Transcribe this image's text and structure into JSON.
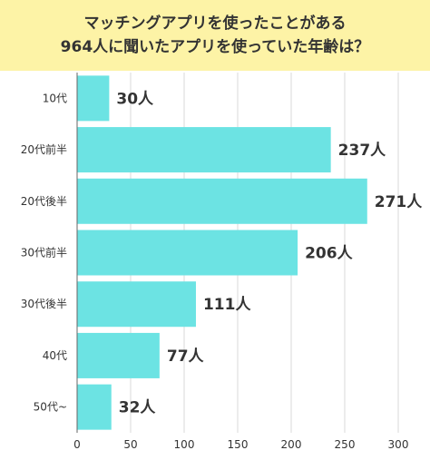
{
  "chart_data": {
    "type": "bar",
    "orientation": "horizontal",
    "title_lines": [
      "マッチングアプリを使ったことがある",
      "964人に聞いたアプリを使っていた年齢は？"
    ],
    "categories": [
      "10代",
      "20代前半",
      "20代後半",
      "30代前半",
      "30代後半",
      "40代",
      "50代~"
    ],
    "values": [
      30,
      237,
      271,
      206,
      111,
      77,
      32
    ],
    "value_labels": [
      "30人",
      "237人",
      "271人",
      "206人",
      "111人",
      "77人",
      "32人"
    ],
    "xlim": [
      0,
      300
    ],
    "xticks": [
      "0",
      "50",
      "100",
      "150",
      "200",
      "250",
      "300"
    ],
    "grid": true,
    "colors": {
      "bar": "#6ce3e3",
      "title_background": "#fdf3a6",
      "text": "#333333",
      "grid": "#d9d9d9"
    }
  }
}
